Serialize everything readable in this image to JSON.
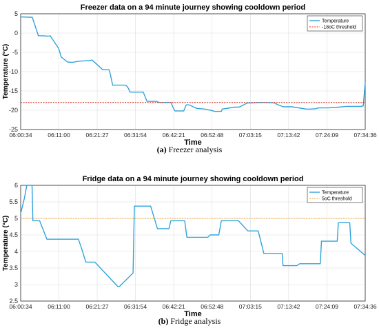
{
  "captions": [
    {
      "label": "(a)",
      "text": "Freezer analysis"
    },
    {
      "label": "(b)",
      "text": "Fridge analysis"
    }
  ],
  "chart_data": [
    {
      "type": "line",
      "title": "Freezer data on a 94 minute journey showing cooldown period",
      "xlabel": "Time",
      "ylabel": "Temperature (°C)",
      "x_tick_labels": [
        "06:00:34",
        "06:11:00",
        "06:21:27",
        "06:31:54",
        "06:42:21",
        "06:52:48",
        "07:03:15",
        "07:13:42",
        "07:24:09",
        "07:34:36"
      ],
      "x_ticks_seconds": [
        21634,
        22260,
        22887,
        23514,
        24141,
        24768,
        25395,
        26022,
        26649,
        27276
      ],
      "xlim_seconds": [
        21634,
        27276
      ],
      "ylim": [
        -25,
        5
      ],
      "y_ticks": [
        -25,
        -20,
        -15,
        -10,
        -5,
        0,
        5
      ],
      "grid": true,
      "legend": "top-right",
      "series": [
        {
          "name": "Temperature",
          "color": "#2ea3dc",
          "x_seconds": [
            21634,
            21788,
            21824,
            21924,
            22000,
            22084,
            22117,
            22257,
            22298,
            22400,
            22480,
            22580,
            22768,
            22804,
            22978,
            23079,
            23100,
            23140,
            23200,
            23251,
            23272,
            23303,
            23334,
            23364,
            23396,
            23426,
            23457,
            23488,
            23518,
            23549,
            23580,
            23610,
            23641,
            23672,
            23702,
            23733,
            23764,
            23794,
            23825,
            23856,
            23886,
            23916,
            23947,
            23977,
            24008,
            24039,
            24069,
            24100,
            24120,
            24160,
            24304,
            24344,
            24394,
            24512,
            24584,
            24653,
            24768,
            24808,
            24919,
            24936,
            25139,
            25210,
            25348,
            25416,
            25556,
            25661,
            25791,
            25835,
            25934,
            26021,
            26078,
            26308,
            26386,
            26468,
            26504,
            26544,
            26680,
            26842,
            26971,
            27061,
            27083,
            27106,
            27128,
            27151,
            27173,
            27200,
            27243,
            27276
          ],
          "y": [
            4.2,
            4.1,
            4.1,
            -0.7,
            -0.7,
            -0.8,
            -0.7,
            -4.0,
            -6.2,
            -7.5,
            -7.6,
            -7.3,
            -7.1,
            -7.0,
            -9.5,
            -9.5,
            -10.5,
            -13.5,
            -13.5,
            -13.5,
            -13.5,
            -13.5,
            -13.5,
            -13.6,
            -14.3,
            -15.3,
            -15.3,
            -15.3,
            -15.3,
            -15.3,
            -15.3,
            -15.3,
            -15.3,
            -16.5,
            -17.7,
            -17.7,
            -17.7,
            -17.7,
            -17.7,
            -17.7,
            -17.9,
            -18.0,
            -18.0,
            -18.0,
            -18.0,
            -18.0,
            -18.0,
            -18.0,
            -19.0,
            -20.2,
            -20.2,
            -18.6,
            -18.6,
            -19.5,
            -19.6,
            -19.7,
            -20.1,
            -20.3,
            -20.3,
            -19.7,
            -19.2,
            -19.2,
            -18.1,
            -18.1,
            -18.0,
            -18.0,
            -18.1,
            -18.5,
            -19.1,
            -19.1,
            -19.1,
            -19.7,
            -19.7,
            -19.6,
            -19.4,
            -19.4,
            -19.4,
            -19.2,
            -19.0,
            -19.0,
            -19.0,
            -19.0,
            -19.0,
            -19.0,
            -19.0,
            -19.0,
            -18.9,
            -12.8
          ]
        },
        {
          "name": "-18oC threshold",
          "color": "#d62d20",
          "dash": true,
          "x_seconds": [
            21634,
            27276
          ],
          "y": [
            -18,
            -18
          ]
        }
      ]
    },
    {
      "type": "line",
      "title": "Fridge data on a 94 minute journey showing cooldown period",
      "xlabel": "Time",
      "ylabel": "Temperature (°C)",
      "x_tick_labels": [
        "06:00:34",
        "06:11:00",
        "06:21:27",
        "06:31:54",
        "06:42:21",
        "06:52:48",
        "07:03:15",
        "07:13:42",
        "07:24:09",
        "07:34:36"
      ],
      "x_ticks_seconds": [
        21634,
        22260,
        22887,
        23514,
        24141,
        24768,
        25395,
        26022,
        26649,
        27276
      ],
      "xlim_seconds": [
        21634,
        27276
      ],
      "ylim": [
        2.5,
        6
      ],
      "y_ticks": [
        2.5,
        3,
        3.5,
        4,
        4.5,
        5,
        5.5,
        6
      ],
      "grid": true,
      "legend": "top-right",
      "series": [
        {
          "name": "Temperature",
          "color": "#2ea3dc",
          "x_seconds": [
            21634,
            21694,
            21734,
            21820,
            21834,
            21944,
            22064,
            22580,
            22634,
            22700,
            22848,
            23224,
            23250,
            23474,
            23496,
            23724,
            23762,
            23874,
            23901,
            24061,
            24094,
            24140,
            24320,
            24356,
            24534,
            24544,
            24698,
            24738,
            24878,
            24920,
            25080,
            25200,
            25354,
            25406,
            25524,
            25616,
            25708,
            25916,
            25930,
            26156,
            26204,
            26374,
            26386,
            26540,
            26560,
            26818,
            26836,
            27022,
            27042,
            27276
          ],
          "y": [
            5.15,
            5.6,
            6.0,
            6.0,
            4.93,
            4.93,
            4.37,
            4.37,
            4.08,
            3.68,
            3.68,
            2.94,
            2.94,
            3.35,
            5.37,
            5.37,
            5.37,
            4.69,
            4.69,
            4.69,
            4.93,
            4.93,
            4.93,
            4.43,
            4.43,
            4.43,
            4.43,
            4.5,
            4.5,
            4.93,
            4.93,
            4.93,
            4.62,
            4.62,
            4.62,
            3.94,
            3.94,
            3.94,
            3.57,
            3.57,
            3.63,
            3.63,
            3.63,
            3.63,
            4.31,
            4.31,
            4.87,
            4.87,
            4.25,
            3.88
          ]
        },
        {
          "name": "5oC threshold",
          "color": "#f0a22f",
          "dash": true,
          "x_seconds": [
            21634,
            27276
          ],
          "y": [
            5,
            5
          ]
        }
      ]
    }
  ]
}
